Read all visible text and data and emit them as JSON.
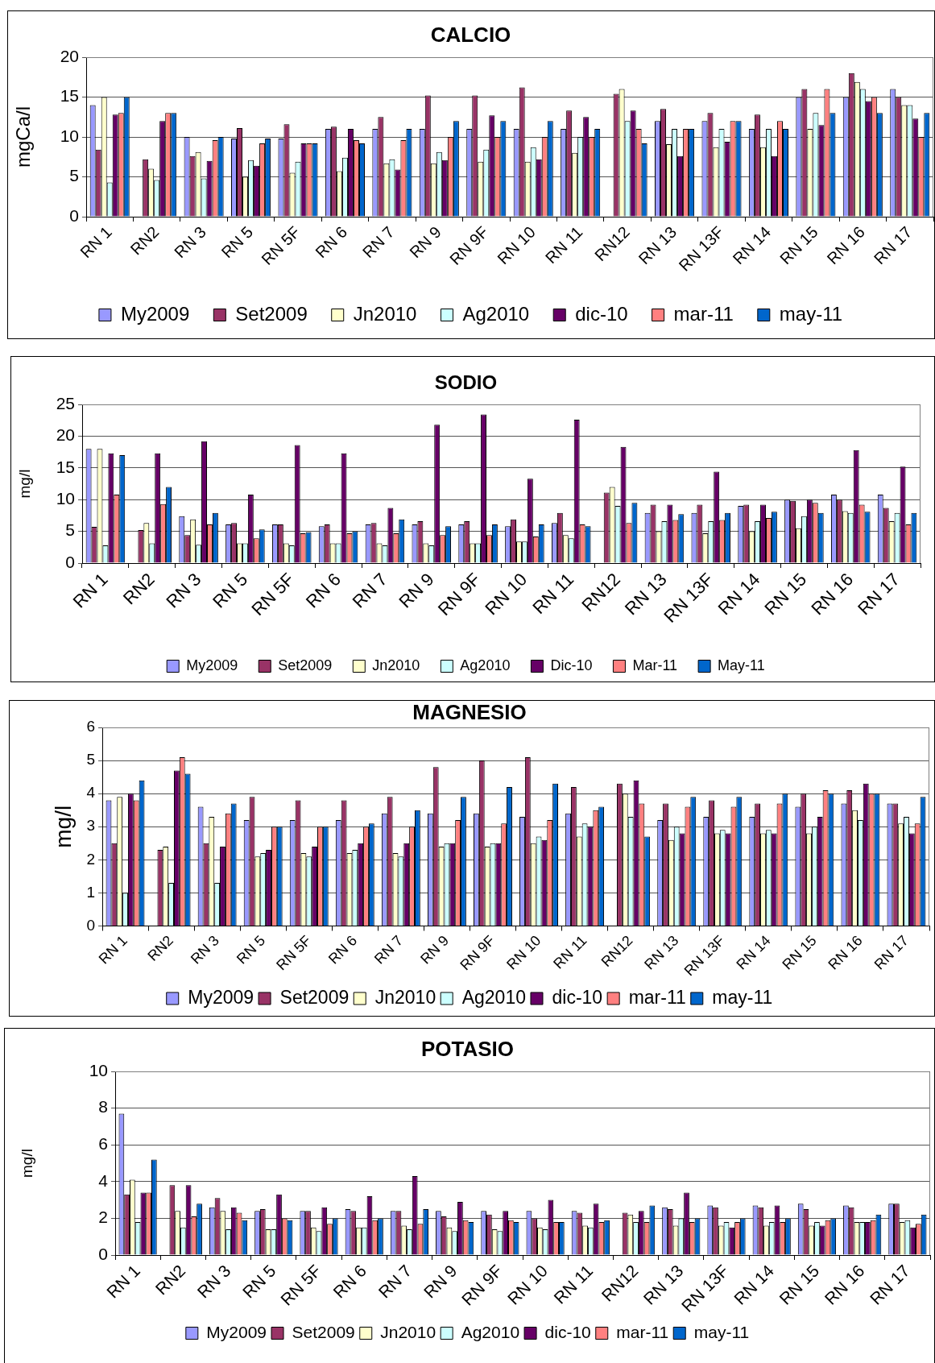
{
  "chart_data": [
    {
      "type": "bar",
      "title": "CALCIO",
      "ylabel": "mgCa/l",
      "categories": [
        "RN 1",
        "RN2",
        "RN 3",
        "RN 5",
        "RN 5F",
        "RN 6",
        "RN 7",
        "RN 9",
        "RN 9F",
        "RN 10",
        "RN 11",
        "RN12",
        "RN 13",
        "RN 13F",
        "RN 14",
        "RN 15",
        "RN 16",
        "RN 17"
      ],
      "series": [
        {
          "name": "My2009",
          "color": "#9999ff",
          "values": [
            14,
            null,
            10,
            9.8,
            9.8,
            11,
            11,
            11,
            11,
            11,
            11,
            null,
            12,
            12,
            11,
            15,
            15,
            16
          ]
        },
        {
          "name": "Set2009",
          "color": "#993366",
          "values": [
            8.4,
            7.2,
            7.6,
            11.1,
            11.6,
            11.3,
            12.5,
            15.2,
            15.2,
            16.2,
            13.3,
            15.4,
            13.5,
            13,
            12.8,
            16,
            18,
            15
          ]
        },
        {
          "name": "Jn2010",
          "color": "#ffffcc",
          "values": [
            15,
            6,
            8.1,
            5,
            5.5,
            5.7,
            6.7,
            6.7,
            6.9,
            6.9,
            8,
            16,
            9.1,
            8.7,
            8.7,
            11,
            16.9,
            14
          ]
        },
        {
          "name": "Ag2010",
          "color": "#ccffff",
          "values": [
            4.3,
            4.6,
            4.8,
            7.1,
            6.9,
            7.4,
            7.2,
            8.1,
            8.4,
            8.7,
            10,
            12,
            11,
            11,
            11,
            13,
            16,
            14
          ]
        },
        {
          "name": "dic-10",
          "color": "#660066",
          "values": [
            12.8,
            12,
            7,
            6.4,
            9.2,
            11,
            5.9,
            7.1,
            12.7,
            7.2,
            12.5,
            13.3,
            7.6,
            9.4,
            7.6,
            11.5,
            14.5,
            12.3
          ]
        },
        {
          "name": "mar-11",
          "color": "#ff8080",
          "values": [
            13,
            13,
            9.6,
            9.2,
            9.2,
            9.6,
            9.6,
            10,
            10,
            10,
            10,
            11,
            11,
            12,
            12,
            16,
            15,
            10
          ]
        },
        {
          "name": "may-11",
          "color": "#0066cc",
          "values": [
            15,
            13,
            10,
            9.8,
            9.2,
            9.2,
            11,
            12,
            12,
            12,
            11,
            9.2,
            11,
            12,
            11,
            13,
            13,
            13
          ]
        }
      ],
      "ylim": [
        0,
        20
      ],
      "yticks": [
        0,
        5,
        10,
        15,
        20
      ],
      "grid": "y",
      "legend": "bottom"
    },
    {
      "type": "bar",
      "title": "SODIO",
      "ylabel": "mg/l",
      "categories": [
        "RN 1",
        "RN2",
        "RN 3",
        "RN 5",
        "RN 5F",
        "RN 6",
        "RN 7",
        "RN 9",
        "RN 9F",
        "RN 10",
        "RN 11",
        "RN12",
        "RN 13",
        "RN 13F",
        "RN 14",
        "RN 15",
        "RN 16",
        "RN 17"
      ],
      "series": [
        {
          "name": "My2009",
          "color": "#9999ff",
          "values": [
            18,
            null,
            7.4,
            6.1,
            6.1,
            5.8,
            6.1,
            6.1,
            6.1,
            5.8,
            6.3,
            null,
            7.9,
            7.9,
            9,
            10,
            10.8,
            10.8
          ]
        },
        {
          "name": "Set2009",
          "color": "#993366",
          "values": [
            5.7,
            5.2,
            4.4,
            6.3,
            6.1,
            6.1,
            6.3,
            6.6,
            6.6,
            6.9,
            7.9,
            11.1,
            9.2,
            9.2,
            9.2,
            9.8,
            10,
            8.7
          ]
        },
        {
          "name": "Jn2010",
          "color": "#ffffcc",
          "values": [
            18,
            6.3,
            6.9,
            3.1,
            3.1,
            3.1,
            3.1,
            3.1,
            3.1,
            3.4,
            4.4,
            12,
            5,
            4.7,
            5,
            5.5,
            8.2,
            6.6
          ]
        },
        {
          "name": "Ag2010",
          "color": "#ccffff",
          "values": [
            2.8,
            3.1,
            2.9,
            3.1,
            2.8,
            3.1,
            2.8,
            2.8,
            3.1,
            3.4,
            3.9,
            9,
            6.6,
            6.6,
            6.6,
            7.4,
            7.9,
            7.9
          ]
        },
        {
          "name": "Dic-10",
          "color": "#660066",
          "values": [
            17.3,
            17.3,
            19.2,
            10.8,
            18.6,
            17.3,
            8.7,
            21.8,
            23.4,
            13.3,
            22.6,
            18.3,
            9.2,
            14.4,
            9.2,
            10,
            17.8,
            15.2
          ]
        },
        {
          "name": "Mar-11",
          "color": "#ff8080",
          "values": [
            10.8,
            9.3,
            6.1,
            3.9,
            4.7,
            4.7,
            4.7,
            4.4,
            4.4,
            4.2,
            6.1,
            6.3,
            6.8,
            6.8,
            7.1,
            9.5,
            9.2,
            6.1
          ]
        },
        {
          "name": "May-11",
          "color": "#0066cc",
          "values": [
            17,
            12,
            7.9,
            5.3,
            4.9,
            5,
            6.9,
            5.8,
            6.1,
            6.1,
            5.8,
            9.5,
            7.7,
            7.9,
            8.1,
            7.9,
            8.1,
            7.9
          ]
        }
      ],
      "ylim": [
        0,
        25
      ],
      "yticks": [
        0,
        5,
        10,
        15,
        20,
        25
      ],
      "grid": "y",
      "legend": "bottom"
    },
    {
      "type": "bar",
      "title": "MAGNESIO",
      "ylabel": "mg/l",
      "categories": [
        "RN 1",
        "RN2",
        "RN 3",
        "RN 5",
        "RN 5F",
        "RN 6",
        "RN 7",
        "RN 9",
        "RN 9F",
        "RN 10",
        "RN 11",
        "RN12",
        "RN 13",
        "RN 13F",
        "RN 14",
        "RN 15",
        "RN 16",
        "RN 17"
      ],
      "series": [
        {
          "name": "My2009",
          "color": "#9999ff",
          "values": [
            3.8,
            null,
            3.6,
            3.2,
            3.2,
            3.2,
            3.4,
            3.4,
            3.4,
            3.3,
            3.4,
            null,
            3.2,
            3.3,
            3.3,
            3.6,
            3.7,
            3.7
          ]
        },
        {
          "name": "Set2009",
          "color": "#993366",
          "values": [
            2.5,
            2.3,
            2.5,
            3.9,
            3.8,
            3.8,
            3.9,
            4.8,
            5,
            5.1,
            4.2,
            4.3,
            3.7,
            3.8,
            3.7,
            4,
            4.1,
            3.7
          ]
        },
        {
          "name": "Jn2010",
          "color": "#ffffcc",
          "values": [
            3.9,
            2.4,
            3.3,
            2.1,
            2.2,
            2.2,
            2.2,
            2.4,
            2.4,
            2.5,
            2.7,
            4,
            2.6,
            2.8,
            2.8,
            2.8,
            3.5,
            3.1
          ]
        },
        {
          "name": "Ag2010",
          "color": "#ccffff",
          "values": [
            1,
            1.3,
            1.3,
            2.2,
            2.1,
            2.3,
            2.1,
            2.5,
            2.5,
            2.7,
            3.1,
            3.3,
            3,
            2.9,
            2.9,
            3,
            3.2,
            3.3
          ]
        },
        {
          "name": "dic-10",
          "color": "#660066",
          "values": [
            4,
            4.7,
            2.4,
            2.3,
            2.4,
            2.5,
            2.5,
            2.5,
            2.5,
            2.6,
            3,
            4.4,
            2.8,
            2.8,
            2.8,
            3.3,
            4.3,
            2.8
          ]
        },
        {
          "name": "mar-11",
          "color": "#ff8080",
          "values": [
            3.8,
            5.1,
            3.4,
            3,
            3,
            3,
            3,
            3.2,
            3.1,
            3.2,
            3.5,
            3.7,
            3.6,
            3.6,
            3.7,
            4.1,
            4,
            3.1
          ]
        },
        {
          "name": "may-11",
          "color": "#0066cc",
          "values": [
            4.4,
            4.6,
            3.7,
            3,
            3,
            3.1,
            3.5,
            3.9,
            4.2,
            4.3,
            3.6,
            2.7,
            3.9,
            3.9,
            4,
            4,
            4,
            3.9
          ]
        }
      ],
      "ylim": [
        0,
        6
      ],
      "yticks": [
        0,
        1,
        2,
        3,
        4,
        5,
        6
      ],
      "grid": "y",
      "legend": "bottom"
    },
    {
      "type": "bar",
      "title": "POTASIO",
      "ylabel": "mg/l",
      "categories": [
        "RN 1",
        "RN2",
        "RN 3",
        "RN 5",
        "RN 5F",
        "RN 6",
        "RN 7",
        "RN 9",
        "RN 9F",
        "RN 10",
        "RN 11",
        "RN12",
        "RN 13",
        "RN 13F",
        "RN 14",
        "RN 15",
        "RN 16",
        "RN 17"
      ],
      "series": [
        {
          "name": "My2009",
          "color": "#9999ff",
          "values": [
            7.7,
            null,
            2.6,
            2.4,
            2.4,
            2.5,
            2.4,
            2.4,
            2.4,
            2.4,
            2.4,
            null,
            2.6,
            2.7,
            2.7,
            2.8,
            2.7,
            2.8
          ]
        },
        {
          "name": "Set2009",
          "color": "#993366",
          "values": [
            3.3,
            3.8,
            3.1,
            2.5,
            2.4,
            2.4,
            2.4,
            2.1,
            2.2,
            2,
            2.3,
            2.3,
            2.5,
            2.6,
            2.6,
            2.5,
            2.6,
            2.8
          ]
        },
        {
          "name": "Jn2010",
          "color": "#ffffcc",
          "values": [
            4.1,
            2.4,
            2.4,
            1.4,
            1.5,
            1.5,
            1.6,
            1.5,
            1.4,
            1.5,
            1.6,
            2.2,
            1.6,
            1.6,
            1.6,
            1.6,
            1.8,
            1.8
          ]
        },
        {
          "name": "Ag2010",
          "color": "#ccffff",
          "values": [
            1.8,
            1.5,
            1.4,
            1.4,
            1.3,
            1.5,
            1.4,
            1.3,
            1.3,
            1.4,
            1.5,
            1.8,
            2,
            1.8,
            1.8,
            1.8,
            1.8,
            1.9
          ]
        },
        {
          "name": "dic-10",
          "color": "#660066",
          "values": [
            3.4,
            3.8,
            2.6,
            3.3,
            2.6,
            3.2,
            4.3,
            2.9,
            2.4,
            3,
            2.8,
            2.4,
            3.4,
            1.5,
            2.7,
            1.6,
            1.8,
            1.5
          ]
        },
        {
          "name": "mar-11",
          "color": "#ff8080",
          "values": [
            3.4,
            2.1,
            2.3,
            2,
            1.7,
            1.9,
            1.7,
            1.9,
            1.9,
            1.8,
            1.8,
            1.8,
            1.8,
            1.8,
            1.8,
            1.9,
            1.9,
            1.7
          ]
        },
        {
          "name": "may-11",
          "color": "#0066cc",
          "values": [
            5.2,
            2.8,
            1.9,
            1.9,
            2,
            2,
            2.5,
            1.8,
            1.8,
            1.8,
            1.9,
            2.7,
            2,
            2,
            2,
            2,
            2.2,
            2.2
          ]
        }
      ],
      "ylim": [
        0,
        10
      ],
      "yticks": [
        0,
        2,
        4,
        6,
        8,
        10
      ],
      "grid": "y",
      "legend": "bottom"
    }
  ]
}
